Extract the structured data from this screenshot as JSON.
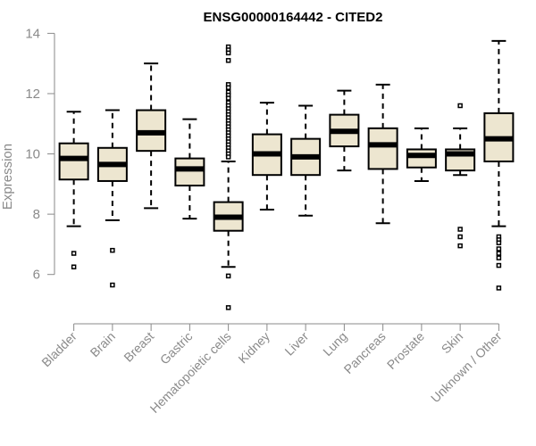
{
  "chart_data": {
    "type": "boxplot",
    "title": "ENSG00000164442 - CITED2",
    "xlabel": "",
    "ylabel": "Expression",
    "ylim": [
      4.6,
      14.1
    ],
    "yticks": [
      6,
      8,
      10,
      12,
      14
    ],
    "grid": false,
    "colors": {
      "box_fill": "#ede6d0",
      "box_stroke": "#000000",
      "axis": "#8a8a8a"
    },
    "categories": [
      "Bladder",
      "Brain",
      "Breast",
      "Gastric",
      "Hematopoietic cells",
      "Kidney",
      "Liver",
      "Lung",
      "Pancreas",
      "Prostate",
      "Skin",
      "Unknown / Other"
    ],
    "boxes": [
      {
        "category": "Bladder",
        "min": 7.6,
        "q1": 9.15,
        "median": 9.85,
        "q3": 10.35,
        "max": 11.4,
        "outliers": [
          6.7,
          6.25
        ]
      },
      {
        "category": "Brain",
        "min": 7.8,
        "q1": 9.1,
        "median": 9.65,
        "q3": 10.2,
        "max": 11.45,
        "outliers": [
          6.8,
          5.65
        ]
      },
      {
        "category": "Breast",
        "min": 8.2,
        "q1": 10.1,
        "median": 10.7,
        "q3": 11.45,
        "max": 13.0,
        "outliers": []
      },
      {
        "category": "Gastric",
        "min": 7.85,
        "q1": 8.95,
        "median": 9.5,
        "q3": 9.85,
        "max": 11.15,
        "outliers": []
      },
      {
        "category": "Hematopoietic cells",
        "min": 6.25,
        "q1": 7.45,
        "median": 7.9,
        "q3": 8.4,
        "max": 9.75,
        "outliers": [
          13.55,
          13.45,
          13.35,
          13.1,
          12.3,
          12.2,
          12.05,
          11.95,
          11.85,
          11.7,
          11.6,
          11.5,
          11.4,
          11.3,
          11.2,
          11.1,
          11.0,
          10.9,
          10.8,
          10.7,
          10.6,
          10.5,
          10.4,
          10.3,
          10.2,
          10.1,
          10.0,
          9.9,
          5.95,
          4.9
        ]
      },
      {
        "category": "Kidney",
        "min": 8.15,
        "q1": 9.3,
        "median": 10.0,
        "q3": 10.65,
        "max": 11.7,
        "outliers": []
      },
      {
        "category": "Liver",
        "min": 7.95,
        "q1": 9.3,
        "median": 9.9,
        "q3": 10.5,
        "max": 11.6,
        "outliers": []
      },
      {
        "category": "Lung",
        "min": 9.45,
        "q1": 10.25,
        "median": 10.75,
        "q3": 11.3,
        "max": 12.1,
        "outliers": []
      },
      {
        "category": "Pancreas",
        "min": 7.7,
        "q1": 9.5,
        "median": 10.3,
        "q3": 10.85,
        "max": 12.3,
        "outliers": []
      },
      {
        "category": "Prostate",
        "min": 9.1,
        "q1": 9.55,
        "median": 9.95,
        "q3": 10.15,
        "max": 10.85,
        "outliers": []
      },
      {
        "category": "Skin",
        "min": 9.3,
        "q1": 9.45,
        "median": 10.0,
        "q3": 10.15,
        "max": 10.85,
        "outliers": [
          11.6,
          7.5,
          7.25,
          6.95
        ]
      },
      {
        "category": "Unknown / Other",
        "min": 7.6,
        "q1": 9.75,
        "median": 10.5,
        "q3": 11.35,
        "max": 13.75,
        "outliers": [
          7.25,
          7.15,
          7.05,
          6.85,
          6.7,
          6.55,
          6.3,
          5.55
        ]
      }
    ]
  }
}
